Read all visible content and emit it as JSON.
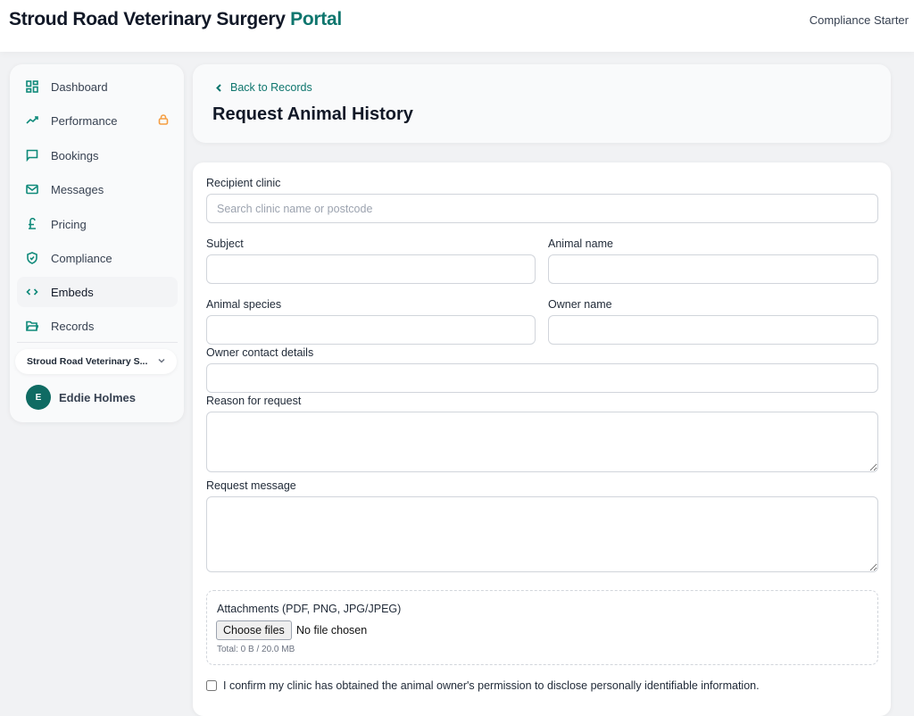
{
  "header": {
    "brand_main": "Stroud Road Veterinary Surgery",
    "brand_accent": "Portal",
    "plan": "Compliance Starter"
  },
  "sidebar": {
    "items": [
      {
        "label": "Dashboard",
        "icon": "grid-icon"
      },
      {
        "label": "Performance",
        "icon": "trending-up-icon",
        "locked": true
      },
      {
        "label": "Bookings",
        "icon": "chat-icon"
      },
      {
        "label": "Messages",
        "icon": "mail-icon"
      },
      {
        "label": "Pricing",
        "icon": "pound-icon"
      },
      {
        "label": "Compliance",
        "icon": "shield-icon"
      },
      {
        "label": "Embeds",
        "icon": "code-icon",
        "active": true
      },
      {
        "label": "Records",
        "icon": "folder-icon"
      }
    ],
    "clinic": "Stroud Road Veterinary S...",
    "user": {
      "initial": "E",
      "name": "Eddie Holmes"
    }
  },
  "page": {
    "back": "Back to Records",
    "title": "Request Animal History"
  },
  "form": {
    "recipient_label": "Recipient clinic",
    "recipient_placeholder": "Search clinic name or postcode",
    "recipient_value": "",
    "subject_label": "Subject",
    "subject_value": "",
    "animal_name_label": "Animal name",
    "animal_name_value": "",
    "species_label": "Animal species",
    "species_value": "",
    "owner_name_label": "Owner name",
    "owner_name_value": "",
    "owner_contact_label": "Owner contact details",
    "owner_contact_value": "",
    "reason_label": "Reason for request",
    "reason_value": "",
    "message_label": "Request message",
    "message_value": "",
    "attachments_label": "Attachments (PDF, PNG, JPG/JPEG)",
    "choose_files": "Choose files",
    "no_file": "No file chosen",
    "total": "Total: 0 B / 20.0 MB",
    "confirm_label": "I confirm my clinic has obtained the animal owner's permission to disclose personally identifiable information.",
    "confirm_checked": false
  },
  "colors": {
    "accent": "#0f766e",
    "lock": "#f59e42"
  }
}
